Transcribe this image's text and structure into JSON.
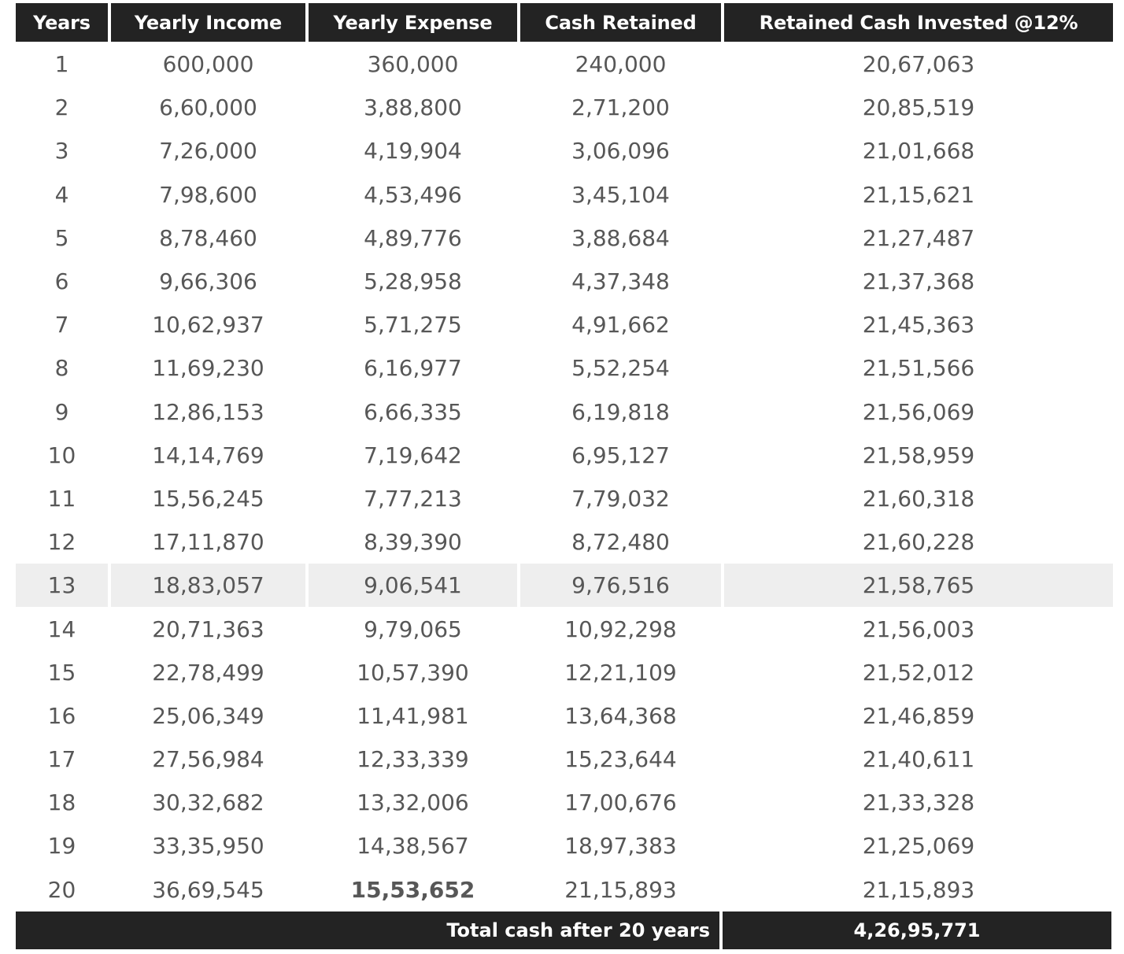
{
  "table": {
    "headers": [
      "Years",
      "Yearly Income",
      "Yearly Expense",
      "Cash Retained",
      "Retained Cash Invested @12%"
    ],
    "rows": [
      [
        "1",
        "600,000",
        "360,000",
        "240,000",
        "20,67,063"
      ],
      [
        "2",
        "6,60,000",
        "3,88,800",
        "2,71,200",
        "20,85,519"
      ],
      [
        "3",
        "7,26,000",
        "4,19,904",
        "3,06,096",
        "21,01,668"
      ],
      [
        "4",
        "7,98,600",
        "4,53,496",
        "3,45,104",
        "21,15,621"
      ],
      [
        "5",
        "8,78,460",
        "4,89,776",
        "3,88,684",
        "21,27,487"
      ],
      [
        "6",
        "9,66,306",
        "5,28,958",
        "4,37,348",
        "21,37,368"
      ],
      [
        "7",
        "10,62,937",
        "5,71,275",
        "4,91,662",
        "21,45,363"
      ],
      [
        "8",
        "11,69,230",
        "6,16,977",
        "5,52,254",
        "21,51,566"
      ],
      [
        "9",
        "12,86,153",
        "6,66,335",
        "6,19,818",
        "21,56,069"
      ],
      [
        "10",
        "14,14,769",
        "7,19,642",
        "6,95,127",
        "21,58,959"
      ],
      [
        "11",
        "15,56,245",
        "7,77,213",
        "7,79,032",
        "21,60,318"
      ],
      [
        "12",
        "17,11,870",
        "8,39,390",
        "8,72,480",
        "21,60,228"
      ],
      [
        "13",
        "18,83,057",
        "9,06,541",
        "9,76,516",
        "21,58,765"
      ],
      [
        "14",
        "20,71,363",
        "9,79,065",
        "10,92,298",
        "21,56,003"
      ],
      [
        "15",
        "22,78,499",
        "10,57,390",
        "12,21,109",
        "21,52,012"
      ],
      [
        "16",
        "25,06,349",
        "11,41,981",
        "13,64,368",
        "21,46,859"
      ],
      [
        "17",
        "27,56,984",
        "12,33,339",
        "15,23,644",
        "21,40,611"
      ],
      [
        "18",
        "30,32,682",
        "13,32,006",
        "17,00,676",
        "21,33,328"
      ],
      [
        "19",
        "33,35,950",
        "14,38,567",
        "18,97,383",
        "21,25,069"
      ],
      [
        "20",
        "36,69,545",
        "15,53,652",
        "21,15,893",
        "21,15,893"
      ]
    ],
    "highlighted_row_year": "13",
    "footer": {
      "label": "Total cash after 20 years",
      "value": "4,26,95,771"
    },
    "colors": {
      "header_bg": "#232323",
      "header_text": "#ffffff",
      "highlight_bg": "#eeeeee",
      "body_text": "#575757"
    }
  }
}
